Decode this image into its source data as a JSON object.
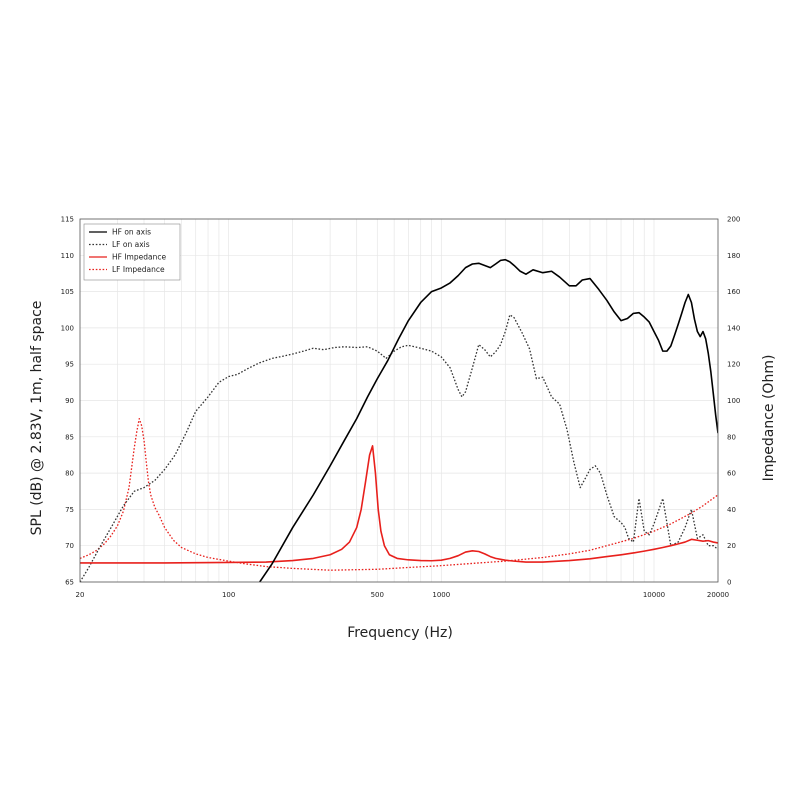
{
  "chart_data": {
    "type": "line",
    "xlabel": "Frequency (Hz)",
    "ylabel": "SPL (dB) @ 2.83V, 1m, half space",
    "y2label": "Impedance (Ohm)",
    "x_scale": "log",
    "xlim": [
      20,
      20000
    ],
    "ylim": [
      65,
      115
    ],
    "y2lim": [
      0,
      200
    ],
    "x_ticks": [
      20,
      100,
      500,
      1000,
      10000,
      20000
    ],
    "x_tick_labels": [
      "20",
      "100",
      "500",
      "1000",
      "10000",
      "20000"
    ],
    "y_ticks": [
      65,
      70,
      75,
      80,
      85,
      90,
      95,
      100,
      105,
      110,
      115
    ],
    "y_tick_labels": [
      "65",
      "70",
      "75",
      "80",
      "85",
      "90",
      "95",
      "100",
      "105",
      "110",
      "115"
    ],
    "y2_ticks": [
      0,
      20,
      40,
      60,
      80,
      100,
      120,
      140,
      160,
      180,
      200
    ],
    "y2_tick_labels": [
      "0",
      "20",
      "40",
      "60",
      "80",
      "100",
      "120",
      "140",
      "160",
      "180",
      "200"
    ],
    "grid": true,
    "legend": "top-left",
    "series": [
      {
        "name": "HF on axis",
        "axis": "left",
        "color": "#000000",
        "dash": "solid",
        "x": [
          140,
          160,
          200,
          250,
          300,
          350,
          400,
          450,
          500,
          560,
          630,
          700,
          800,
          900,
          1000,
          1100,
          1200,
          1300,
          1400,
          1500,
          1600,
          1700,
          1800,
          1900,
          2000,
          2100,
          2200,
          2350,
          2500,
          2700,
          3000,
          3300,
          3600,
          4000,
          4300,
          4600,
          5000,
          5500,
          6000,
          6500,
          7000,
          7500,
          8000,
          8500,
          9000,
          9500,
          10000,
          10500,
          11000,
          11500,
          12000,
          12500,
          13000,
          13500,
          14000,
          14500,
          15000,
          15500,
          16000,
          16500,
          17000,
          17500,
          18000,
          18500,
          19000,
          19500,
          20000
        ],
        "y": [
          65,
          67.5,
          72.5,
          77,
          81,
          84.5,
          87.5,
          90.5,
          93,
          95.5,
          98.5,
          101,
          103.5,
          105,
          105.5,
          106.2,
          107.2,
          108.3,
          108.8,
          108.9,
          108.6,
          108.3,
          108.8,
          109.3,
          109.4,
          109.1,
          108.6,
          107.8,
          107.4,
          108.0,
          107.6,
          107.8,
          107.0,
          105.8,
          105.8,
          106.6,
          106.8,
          105.3,
          103.8,
          102.2,
          101.0,
          101.3,
          102.0,
          102.1,
          101.5,
          100.8,
          99.5,
          98.3,
          96.8,
          96.8,
          97.5,
          99.0,
          100.5,
          102.0,
          103.5,
          104.6,
          103.5,
          101.2,
          99.5,
          98.8,
          99.5,
          98.5,
          96.5,
          94.0,
          91.0,
          88.0,
          85.5
        ]
      },
      {
        "name": "LF on axis",
        "axis": "left",
        "color": "#333333",
        "dash": "dotted",
        "x": [
          20,
          22,
          25,
          28,
          32,
          36,
          40,
          45,
          50,
          56,
          63,
          70,
          80,
          90,
          100,
          110,
          125,
          140,
          160,
          180,
          200,
          225,
          250,
          280,
          315,
          350,
          400,
          450,
          500,
          550,
          600,
          650,
          700,
          800,
          900,
          1000,
          1100,
          1200,
          1250,
          1300,
          1400,
          1500,
          1600,
          1700,
          1800,
          1900,
          2000,
          2100,
          2200,
          2400,
          2600,
          2800,
          3000,
          3300,
          3600,
          3900,
          4200,
          4500,
          4800,
          5000,
          5300,
          5600,
          6000,
          6500,
          7000,
          7300,
          7600,
          8000,
          8500,
          9000,
          9500,
          10000,
          11000,
          12000,
          13000,
          14000,
          15000,
          16000,
          17000,
          18000,
          19000,
          20000
        ],
        "y": [
          65,
          67,
          70,
          72.5,
          75.5,
          77.5,
          78.0,
          79.0,
          80.5,
          82.5,
          85.5,
          88.5,
          90.5,
          92.5,
          93.3,
          93.6,
          94.5,
          95.2,
          95.8,
          96.1,
          96.4,
          96.8,
          97.2,
          97.0,
          97.3,
          97.4,
          97.3,
          97.4,
          96.8,
          95.8,
          96.8,
          97.4,
          97.6,
          97.2,
          96.8,
          96.0,
          94.5,
          91.5,
          90.5,
          91.2,
          94.5,
          97.7,
          97.0,
          96.0,
          96.7,
          97.7,
          99.5,
          101.8,
          101.4,
          99.3,
          97.1,
          93.0,
          93.2,
          90.5,
          89.5,
          86.0,
          81.5,
          78.0,
          79.5,
          80.5,
          81.0,
          80.0,
          77.0,
          74.0,
          73.2,
          72.5,
          71.0,
          70.5,
          76.5,
          72.0,
          71.5,
          73.0,
          76.5,
          70.0,
          70.5,
          72.5,
          75.0,
          71.0,
          71.5,
          70.0,
          70.0,
          69.5
        ]
      },
      {
        "name": "HF Impedance",
        "axis": "right",
        "color": "#e8201c",
        "dash": "solid",
        "x": [
          20,
          50,
          100,
          150,
          200,
          250,
          300,
          340,
          370,
          400,
          420,
          440,
          460,
          475,
          490,
          505,
          520,
          540,
          570,
          620,
          700,
          800,
          900,
          1000,
          1100,
          1200,
          1300,
          1400,
          1500,
          1600,
          1700,
          1800,
          2000,
          2200,
          2500,
          3000,
          4000,
          5000,
          6000,
          7000,
          8000,
          9000,
          10000,
          11000,
          12000,
          13000,
          14000,
          15000,
          16000,
          17000,
          18000,
          19000,
          20000
        ],
        "y": [
          10.5,
          10.5,
          10.8,
          11,
          11.8,
          13,
          15,
          18,
          22,
          30,
          40,
          55,
          70,
          75,
          60,
          40,
          28,
          20,
          15,
          13,
          12.2,
          11.8,
          11.7,
          12,
          13,
          14.5,
          16.5,
          17.2,
          16.8,
          15.5,
          14,
          13,
          12,
          11.5,
          11,
          11,
          11.8,
          12.8,
          14,
          15,
          16,
          17,
          18,
          19,
          20,
          21,
          22,
          23.5,
          23,
          22.5,
          22.8,
          22,
          21.5
        ]
      },
      {
        "name": "LF Impedance",
        "axis": "right",
        "color": "#e8201c",
        "dash": "dotted",
        "x": [
          20,
          22,
          24,
          26,
          28,
          30,
          32,
          34,
          36,
          37,
          38,
          39,
          40,
          41,
          42,
          43,
          45,
          47,
          50,
          55,
          60,
          70,
          80,
          100,
          120,
          150,
          200,
          300,
          500,
          700,
          1000,
          1500,
          2000,
          3000,
          4000,
          5000,
          6000,
          8000,
          10000,
          12000,
          15000,
          17000,
          20000
        ],
        "y": [
          13,
          15,
          17.5,
          21,
          25.5,
          31,
          39,
          52,
          74,
          83,
          90,
          86,
          78,
          66,
          55,
          48,
          41,
          37,
          30,
          23,
          19,
          15.5,
          13.5,
          11.5,
          10,
          8.5,
          7.5,
          6.5,
          7,
          8,
          9,
          10.5,
          11.5,
          13.5,
          15.5,
          17.5,
          20,
          24,
          28,
          32,
          38,
          42,
          48
        ]
      }
    ]
  }
}
